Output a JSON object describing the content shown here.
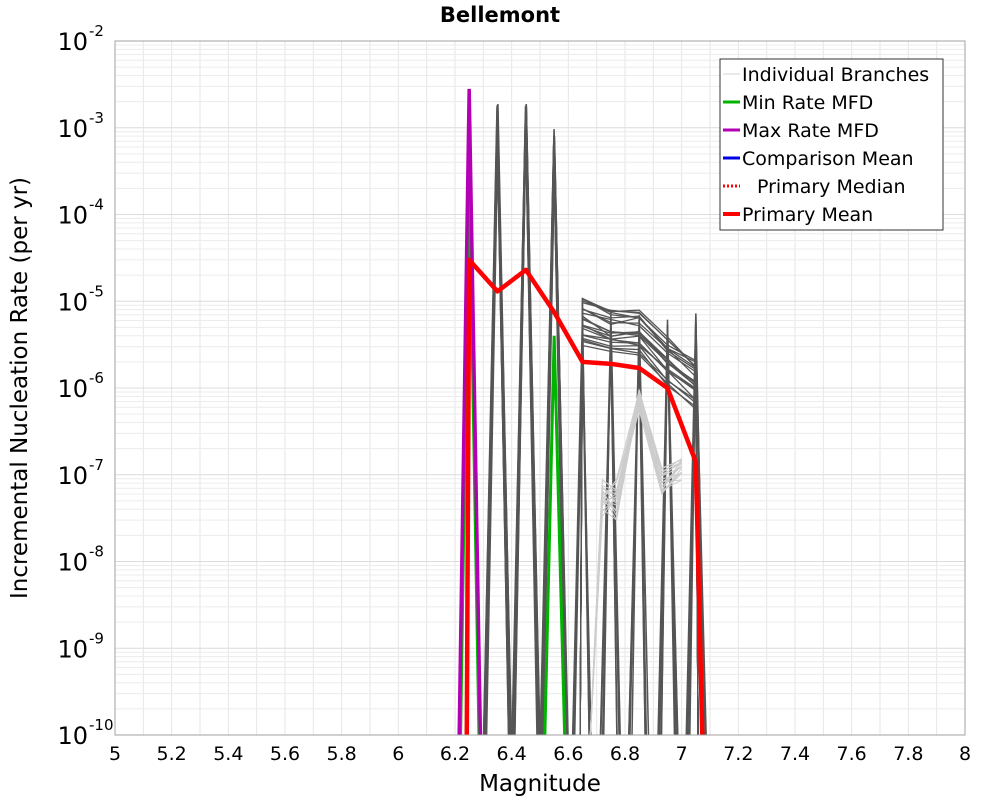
{
  "chart_data": {
    "type": "line",
    "title": "Bellemont",
    "xlabel": "Magnitude",
    "ylabel": "Incremental Nucleation Rate (per yr)",
    "xlim": [
      5,
      8
    ],
    "ylim": [
      1e-10,
      0.01
    ],
    "yscale": "log",
    "grid": true,
    "legend_position": "top-right",
    "x_ticks": [
      "5",
      "5.2",
      "5.4",
      "5.6",
      "5.8",
      "6",
      "6.2",
      "6.4",
      "6.6",
      "6.8",
      "7",
      "7.2",
      "7.4",
      "7.6",
      "7.8",
      "8"
    ],
    "y_ticks": [
      {
        "base": "10",
        "exp": "-2"
      },
      {
        "base": "10",
        "exp": "-3"
      },
      {
        "base": "10",
        "exp": "-4"
      },
      {
        "base": "10",
        "exp": "-5"
      },
      {
        "base": "10",
        "exp": "-6"
      },
      {
        "base": "10",
        "exp": "-7"
      },
      {
        "base": "10",
        "exp": "-8"
      },
      {
        "base": "10",
        "exp": "-9"
      },
      {
        "base": "10",
        "exp": "-10"
      }
    ],
    "legend": [
      {
        "label": "Individual Branches",
        "color": "#d3d3d3",
        "style": "thin"
      },
      {
        "label": "Min Rate MFD",
        "color": "#00b400",
        "style": "solid"
      },
      {
        "label": "Max Rate MFD",
        "color": "#b400b4",
        "style": "solid"
      },
      {
        "label": "Comparison Mean",
        "color": "#0000e6",
        "style": "solid"
      },
      {
        "label": "Primary Median",
        "color": "#ff0000",
        "style": "dotted"
      },
      {
        "label": "Primary Mean",
        "color": "#ff0000",
        "style": "thick"
      }
    ],
    "series": [
      {
        "name": "Individual Branches",
        "color": "#505050",
        "x": [
          6.35,
          6.45,
          6.55
        ],
        "y": [
          0.0019,
          0.0019,
          0.00095
        ]
      },
      {
        "name": "Individual Branches",
        "color": "#505050",
        "x": [
          6.65,
          6.75,
          6.85,
          6.95,
          7.05
        ],
        "y": [
          1.2e-05,
          9e-06,
          9e-06,
          4e-06,
          2.3e-06
        ]
      },
      {
        "name": "Min Rate MFD",
        "color": "#00b400",
        "x": [
          6.25,
          6.55
        ],
        "y": [
          0.0003,
          4e-06
        ]
      },
      {
        "name": "Max Rate MFD",
        "color": "#b400b4",
        "x": [
          6.25
        ],
        "y": [
          0.0028
        ]
      },
      {
        "name": "Primary Mean",
        "color": "#ff0000",
        "x": [
          6.25,
          6.35,
          6.45,
          6.55,
          6.65,
          6.75,
          6.85,
          6.95,
          7.05
        ],
        "y": [
          3e-05,
          1.3e-05,
          2.3e-05,
          7.5e-06,
          2e-06,
          1.9e-06,
          1.7e-06,
          1e-06,
          1.4e-07
        ]
      }
    ]
  }
}
